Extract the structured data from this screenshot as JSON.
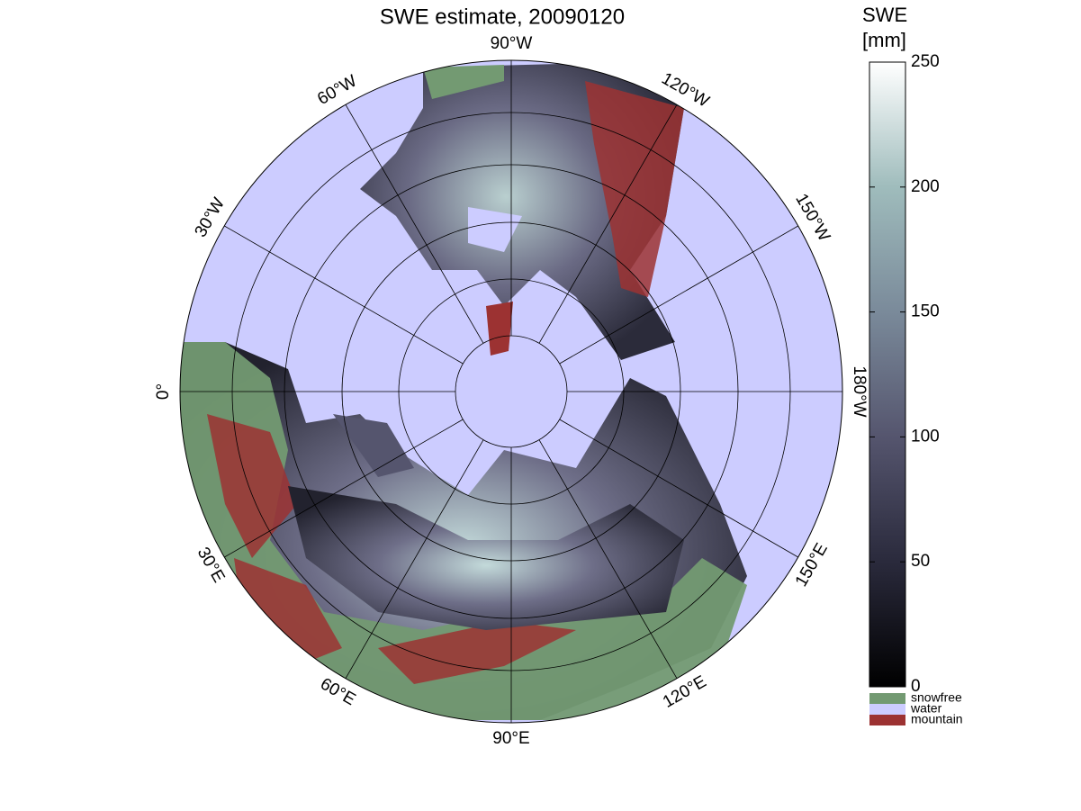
{
  "title": "SWE estimate, 20090120",
  "meridian_labels": [
    "0°",
    "30°W",
    "60°W",
    "90°W",
    "120°W",
    "150°W",
    "180°W",
    "150°E",
    "120°E",
    "90°E",
    "60°E",
    "30°E"
  ],
  "colorbar": {
    "title": [
      "SWE",
      "[mm]"
    ],
    "ylim": [
      0,
      250
    ],
    "yticks": [
      0,
      50,
      100,
      150,
      200,
      250
    ],
    "colormap": [
      "#000000",
      "#2a2a3c",
      "#55556e",
      "#7a8a9a",
      "#9fbcbc",
      "#ffffff"
    ]
  },
  "legend": [
    {
      "name": "snowfree",
      "color": "#739a72"
    },
    {
      "name": "water",
      "color": "#ccccff"
    },
    {
      "name": "mountain",
      "color": "#9c3232"
    }
  ]
}
